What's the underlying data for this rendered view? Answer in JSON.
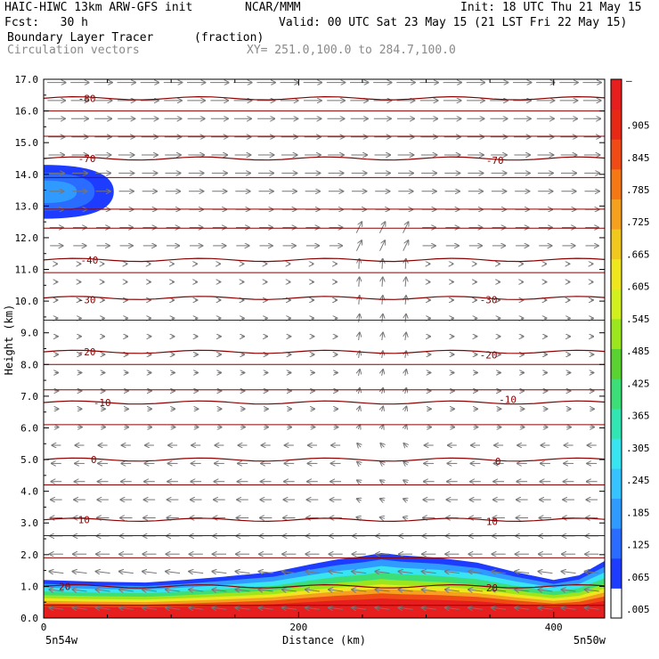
{
  "header": {
    "model": "HAIC-HIWC 13km ARW-GFS init",
    "org": "NCAR/MMM",
    "init": "Init: 18 UTC Thu 21 May 15",
    "fcst": "Fcst:   30 h",
    "valid": "Valid: 00 UTC Sat 23 May 15 (21 LST Fri 22 May 15)",
    "field1": "Boundary Layer Tracer",
    "field1_units": "(fraction)",
    "field2": "Circulation vectors",
    "xy": "XY= 251.0,100.0 to 284.7,100.0"
  },
  "chart_data": {
    "type": "heatmap",
    "title": "Boundary Layer Tracer",
    "units": "(fraction)",
    "xlabel": "Distance (km)",
    "ylabel": "Height (km)",
    "xlim": [
      0,
      440
    ],
    "ylim": [
      0,
      17
    ],
    "x_ticks": [
      0,
      200,
      400
    ],
    "y_ticks": [
      0.0,
      1.0,
      2.0,
      3.0,
      4.0,
      5.0,
      6.0,
      7.0,
      8.0,
      9.0,
      10.0,
      11.0,
      12.0,
      13.0,
      14.0,
      15.0,
      16.0,
      17.0
    ],
    "y_tick_labels": [
      "0.0",
      "1.0",
      "2.0",
      "3.0",
      "4.0",
      "5.0",
      "6.0",
      "7.0",
      "8.0",
      "9.0",
      "10.0",
      "11.0",
      "12.0",
      "13.0",
      "14.0",
      "15.0",
      "16.0",
      "17.0"
    ],
    "endpoint_labels": [
      "5n54w",
      "5n50w"
    ],
    "colorbar_ticks": [
      ".005",
      ".065",
      ".125",
      ".185",
      ".245",
      ".305",
      ".365",
      ".425",
      ".485",
      ".545",
      ".605",
      ".665",
      ".725",
      ".785",
      ".845",
      ".905"
    ],
    "colorbar_top_label": "–",
    "colorbar_colors": [
      "#ffffff",
      "#1e3cff",
      "#2a6cff",
      "#2f9aff",
      "#36c3ff",
      "#38e4f0",
      "#32e6b4",
      "#3cde78",
      "#5ad232",
      "#9ce61e",
      "#d2f01e",
      "#f0e61e",
      "#f0c81e",
      "#f5a01e",
      "#f57814",
      "#f04b14",
      "#e62814",
      "#e61e1e"
    ],
    "boundary_layer_top_km": [
      {
        "x": 0,
        "y": 1.2
      },
      {
        "x": 40,
        "y": 1.15
      },
      {
        "x": 80,
        "y": 1.12
      },
      {
        "x": 110,
        "y": 1.2
      },
      {
        "x": 140,
        "y": 1.3
      },
      {
        "x": 180,
        "y": 1.45
      },
      {
        "x": 210,
        "y": 1.7
      },
      {
        "x": 230,
        "y": 1.85
      },
      {
        "x": 250,
        "y": 1.95
      },
      {
        "x": 265,
        "y": 2.05
      },
      {
        "x": 280,
        "y": 1.98
      },
      {
        "x": 310,
        "y": 1.9
      },
      {
        "x": 340,
        "y": 1.75
      },
      {
        "x": 370,
        "y": 1.45
      },
      {
        "x": 400,
        "y": 1.2
      },
      {
        "x": 420,
        "y": 1.35
      },
      {
        "x": 440,
        "y": 1.8
      }
    ],
    "upper_plume": {
      "x_max_km": 55,
      "y_bottom_km": 12.6,
      "y_top_km": 14.3
    },
    "temperature_contours": [
      {
        "value": "-80",
        "y": 16.4
      },
      {
        "value": "-70",
        "y": 14.5
      },
      {
        "value": "-40",
        "y": 11.3
      },
      {
        "value": "-30",
        "y": 10.1
      },
      {
        "value": "-20",
        "y": 8.4
      },
      {
        "value": "-10",
        "y": 6.8
      },
      {
        "value": "0",
        "y": 5.0
      },
      {
        "value": "10",
        "y": 3.1
      },
      {
        "value": "20",
        "y": 1.0
      }
    ],
    "contour_label_rows": [
      {
        "text": "-80",
        "x": 20,
        "y": 16.4
      },
      {
        "text": "-70",
        "x": 20,
        "y": 14.5
      },
      {
        "text": "-70",
        "x": 340,
        "y": 14.45
      },
      {
        "text": "-40",
        "x": 22,
        "y": 11.3
      },
      {
        "text": "-30",
        "x": 20,
        "y": 10.05
      },
      {
        "text": "-30",
        "x": 335,
        "y": 10.05
      },
      {
        "text": "-20",
        "x": 20,
        "y": 8.4
      },
      {
        "text": "-20",
        "x": 335,
        "y": 8.3
      },
      {
        "text": "-10",
        "x": 32,
        "y": 6.8
      },
      {
        "text": "-10",
        "x": 350,
        "y": 6.9
      },
      {
        "text": "0",
        "x": 30,
        "y": 5.0
      },
      {
        "text": "0",
        "x": 347,
        "y": 4.95
      },
      {
        "text": "10",
        "x": 20,
        "y": 3.1
      },
      {
        "text": "10",
        "x": 340,
        "y": 3.05
      },
      {
        "text": "20",
        "x": 5,
        "y": 1.0
      },
      {
        "text": "20",
        "x": 340,
        "y": 0.95
      }
    ]
  }
}
